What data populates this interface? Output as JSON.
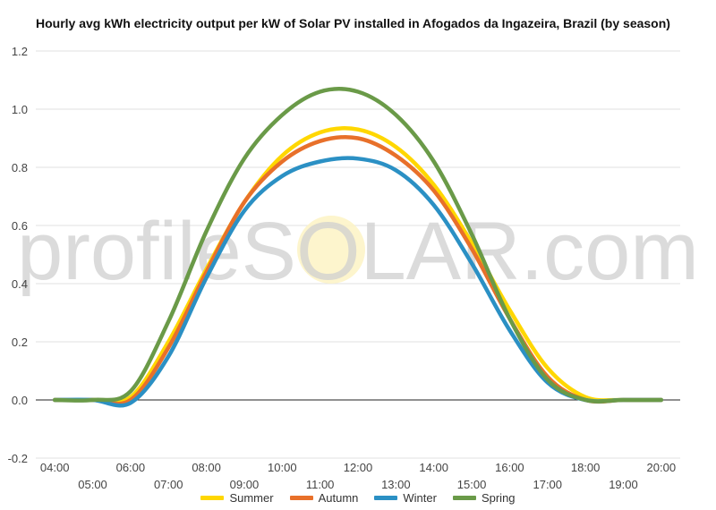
{
  "chart_data": {
    "type": "line",
    "title": "Hourly avg kWh electricity output per kW of Solar PV installed in Afogados da Ingazeira, Brazil (by season)",
    "watermark": "profileSOLAR.com",
    "x": [
      "04:00",
      "05:00",
      "06:00",
      "07:00",
      "08:00",
      "09:00",
      "10:00",
      "11:00",
      "12:00",
      "13:00",
      "14:00",
      "15:00",
      "16:00",
      "17:00",
      "18:00",
      "19:00",
      "20:00"
    ],
    "ylim": [
      -0.2,
      1.2
    ],
    "yticks": [
      "-0.2",
      "0.0",
      "0.2",
      "0.4",
      "0.6",
      "0.8",
      "1.0",
      "1.2"
    ],
    "grid": true,
    "legend_position": "bottom",
    "series": [
      {
        "name": "Summer",
        "color": "#FFD700",
        "values": [
          0,
          0,
          0.01,
          0.2,
          0.45,
          0.68,
          0.84,
          0.92,
          0.93,
          0.87,
          0.74,
          0.54,
          0.31,
          0.11,
          0.01,
          0,
          0
        ]
      },
      {
        "name": "Autumn",
        "color": "#E8702A",
        "values": [
          0,
          0,
          0.0,
          0.18,
          0.44,
          0.68,
          0.82,
          0.89,
          0.9,
          0.84,
          0.72,
          0.52,
          0.28,
          0.08,
          0.0,
          0,
          0
        ]
      },
      {
        "name": "Winter",
        "color": "#2B90C4",
        "values": [
          0,
          0,
          -0.01,
          0.15,
          0.42,
          0.65,
          0.77,
          0.82,
          0.83,
          0.79,
          0.67,
          0.47,
          0.24,
          0.06,
          0.0,
          0,
          0
        ]
      },
      {
        "name": "Spring",
        "color": "#6A9A48",
        "values": [
          0,
          0,
          0.03,
          0.27,
          0.58,
          0.83,
          0.98,
          1.06,
          1.06,
          0.98,
          0.82,
          0.57,
          0.28,
          0.07,
          0.0,
          0,
          0
        ]
      }
    ]
  }
}
